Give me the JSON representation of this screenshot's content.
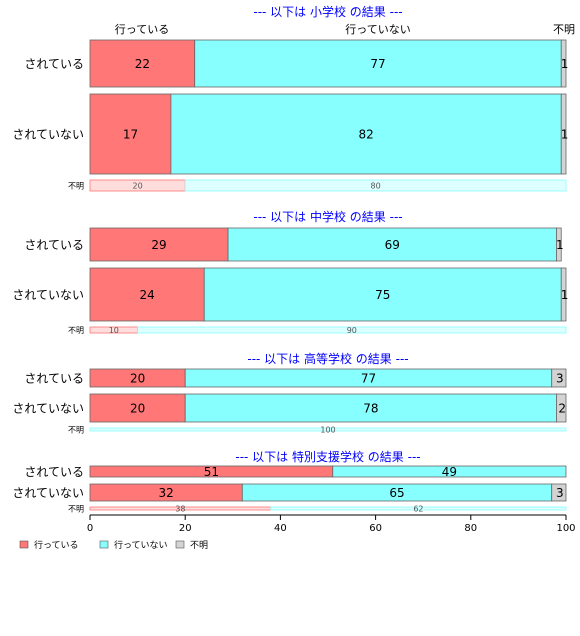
{
  "chart_data": {
    "type": "bar",
    "orientation": "horizontal",
    "stacked": true,
    "xlim": [
      0,
      100
    ],
    "x_ticks": [
      0,
      20,
      40,
      60,
      80,
      100
    ],
    "legend_position": "bottom-left",
    "series_colors": [
      "#ff7777",
      "#88ffff",
      "#d3d3d3"
    ],
    "legend": [
      {
        "label": "行っている",
        "color": "#ff7777"
      },
      {
        "label": "行っていない",
        "color": "#88ffff"
      },
      {
        "label": "不明",
        "color": "#d3d3d3"
      }
    ],
    "top_labels": [
      "行っている",
      "行っていない",
      "不明"
    ],
    "panels": [
      {
        "title": "--- 以下は 小学校 の結果 ---",
        "rows": [
          {
            "label": "されている",
            "values": [
              22,
              77,
              1
            ]
          },
          {
            "label": "されていない",
            "values": [
              17,
              82,
              1
            ]
          },
          {
            "label": "不明",
            "values": [
              20,
              80,
              0
            ]
          }
        ]
      },
      {
        "title": "--- 以下は 中学校 の結果 ---",
        "rows": [
          {
            "label": "されている",
            "values": [
              29,
              69,
              1
            ]
          },
          {
            "label": "されていない",
            "values": [
              24,
              75,
              1
            ]
          },
          {
            "label": "不明",
            "values": [
              10,
              90,
              0
            ]
          }
        ]
      },
      {
        "title": "--- 以下は 高等学校 の結果 ---",
        "rows": [
          {
            "label": "されている",
            "values": [
              20,
              77,
              3
            ]
          },
          {
            "label": "されていない",
            "values": [
              20,
              78,
              2
            ]
          },
          {
            "label": "不明",
            "values": [
              0,
              100,
              0
            ]
          }
        ]
      },
      {
        "title": "--- 以下は 特別支援学校 の結果 ---",
        "rows": [
          {
            "label": "されている",
            "values": [
              51,
              49,
              0
            ]
          },
          {
            "label": "されていない",
            "values": [
              32,
              65,
              3
            ]
          },
          {
            "label": "不明",
            "values": [
              38,
              62,
              0
            ]
          }
        ]
      }
    ]
  }
}
